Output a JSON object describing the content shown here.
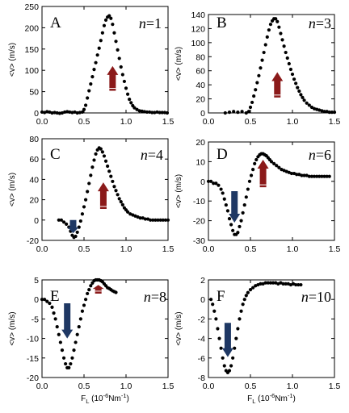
{
  "figure": {
    "ylabel": "<v> (m/s)",
    "xlabel_main": "F",
    "xlabel_sub": "L",
    "xlabel_unit_open": "(10",
    "xlabel_unit_exp": "-6",
    "xlabel_unit_close": "Nm",
    "xlabel_unit_exp2": "-1",
    "xlabel_unit_end": ")",
    "arrow_up_color": "#8b1a1a",
    "arrow_down_color": "#1f3864",
    "marker_color": "#000000"
  },
  "chart_data": [
    {
      "type": "scatter",
      "panel": "A",
      "n_label": "n",
      "n_value": "=1",
      "xlim": [
        0.0,
        1.5
      ],
      "ylim": [
        0,
        250
      ],
      "xticks": [
        "0.0",
        "0.5",
        "1.0",
        "1.5"
      ],
      "yticks": [
        "0",
        "50",
        "100",
        "150",
        "200",
        "250"
      ],
      "x": [
        0.0,
        0.03,
        0.06,
        0.09,
        0.12,
        0.15,
        0.18,
        0.21,
        0.24,
        0.27,
        0.3,
        0.33,
        0.36,
        0.39,
        0.42,
        0.45,
        0.48,
        0.5,
        0.52,
        0.54,
        0.56,
        0.58,
        0.6,
        0.62,
        0.64,
        0.66,
        0.68,
        0.7,
        0.72,
        0.74,
        0.76,
        0.78,
        0.8,
        0.82,
        0.84,
        0.86,
        0.88,
        0.9,
        0.92,
        0.94,
        0.96,
        0.98,
        1.0,
        1.02,
        1.04,
        1.06,
        1.08,
        1.1,
        1.13,
        1.16,
        1.19,
        1.22,
        1.25,
        1.28,
        1.31,
        1.34,
        1.37,
        1.4,
        1.43,
        1.46,
        1.49
      ],
      "y": [
        2,
        1,
        3,
        2,
        0,
        1,
        0,
        -1,
        0,
        2,
        3,
        2,
        1,
        2,
        0,
        1,
        2,
        8,
        18,
        35,
        52,
        68,
        85,
        102,
        118,
        136,
        152,
        170,
        188,
        205,
        218,
        225,
        228,
        222,
        208,
        188,
        168,
        148,
        128,
        108,
        90,
        74,
        58,
        44,
        32,
        24,
        17,
        12,
        8,
        5,
        4,
        3,
        2,
        2,
        1,
        1,
        2,
        1,
        1,
        1,
        0
      ],
      "arrows": [
        {
          "direction": "up",
          "x": 0.84,
          "y_from": 52,
          "y_to": 110
        }
      ]
    },
    {
      "type": "scatter",
      "panel": "B",
      "n_label": "n",
      "n_value": "=3",
      "xlim": [
        0.0,
        1.5
      ],
      "ylim": [
        0,
        140
      ],
      "xticks": [
        "0.0",
        "0.5",
        "1.0",
        "1.5"
      ],
      "yticks": [
        "0",
        "20",
        "40",
        "60",
        "80",
        "100",
        "120",
        "140"
      ],
      "x": [
        0.2,
        0.25,
        0.3,
        0.35,
        0.4,
        0.45,
        0.48,
        0.5,
        0.52,
        0.54,
        0.56,
        0.58,
        0.6,
        0.62,
        0.64,
        0.66,
        0.68,
        0.7,
        0.72,
        0.74,
        0.76,
        0.78,
        0.8,
        0.82,
        0.84,
        0.86,
        0.88,
        0.9,
        0.92,
        0.94,
        0.96,
        0.98,
        1.0,
        1.02,
        1.04,
        1.06,
        1.08,
        1.1,
        1.12,
        1.14,
        1.17,
        1.2,
        1.23,
        1.26,
        1.29,
        1.32,
        1.35,
        1.38,
        1.41,
        1.44,
        1.47,
        1.5
      ],
      "y": [
        0,
        1,
        2,
        1,
        2,
        0,
        2,
        8,
        15,
        24,
        33,
        43,
        53,
        64,
        75,
        86,
        97,
        108,
        118,
        126,
        131,
        134,
        134,
        130,
        122,
        113,
        104,
        95,
        86,
        78,
        70,
        62,
        55,
        48,
        42,
        36,
        31,
        26,
        22,
        18,
        14,
        11,
        8,
        6,
        5,
        4,
        3,
        2,
        2,
        1,
        1,
        1
      ],
      "arrows": [
        {
          "direction": "up",
          "x": 0.82,
          "y_from": 22,
          "y_to": 58
        }
      ]
    },
    {
      "type": "scatter",
      "panel": "C",
      "n_label": "n",
      "n_value": "=4",
      "xlim": [
        0.0,
        1.5
      ],
      "ylim": [
        -20,
        80
      ],
      "xticks": [
        "0.0",
        "0.5",
        "1.0",
        "1.5"
      ],
      "yticks": [
        "-20",
        "0",
        "20",
        "40",
        "60",
        "80"
      ],
      "x": [
        0.2,
        0.23,
        0.26,
        0.29,
        0.32,
        0.34,
        0.36,
        0.38,
        0.4,
        0.42,
        0.44,
        0.46,
        0.48,
        0.5,
        0.52,
        0.54,
        0.56,
        0.58,
        0.6,
        0.62,
        0.64,
        0.66,
        0.68,
        0.7,
        0.72,
        0.74,
        0.76,
        0.78,
        0.8,
        0.82,
        0.84,
        0.86,
        0.88,
        0.9,
        0.92,
        0.94,
        0.96,
        0.98,
        1.0,
        1.02,
        1.05,
        1.08,
        1.11,
        1.14,
        1.17,
        1.2,
        1.23,
        1.26,
        1.29,
        1.32,
        1.35,
        1.38,
        1.41,
        1.44,
        1.47,
        1.5
      ],
      "y": [
        0,
        0,
        -2,
        -4,
        -7,
        -11,
        -15,
        -17,
        -16,
        -12,
        -7,
        -1,
        6,
        13,
        20,
        28,
        36,
        44,
        52,
        59,
        65,
        69,
        71,
        70,
        67,
        63,
        58,
        53,
        48,
        43,
        38,
        33,
        29,
        25,
        21,
        18,
        15,
        12,
        10,
        8,
        6,
        5,
        4,
        3,
        2,
        2,
        1,
        1,
        0,
        0,
        0,
        0,
        0,
        0,
        0,
        0
      ],
      "arrows": [
        {
          "direction": "down",
          "x": 0.37,
          "y_from": 0,
          "y_to": -13
        },
        {
          "direction": "up",
          "x": 0.73,
          "y_from": 11,
          "y_to": 37
        }
      ]
    },
    {
      "type": "scatter",
      "panel": "D",
      "n_label": "n",
      "n_value": "=6",
      "xlim": [
        0.0,
        1.5
      ],
      "ylim": [
        -30,
        20
      ],
      "xticks": [
        "0.0",
        "0.5",
        "1.0",
        "1.5"
      ],
      "yticks": [
        "-30",
        "-20",
        "-10",
        "0",
        "10",
        "20"
      ],
      "x": [
        0.0,
        0.03,
        0.06,
        0.09,
        0.12,
        0.15,
        0.17,
        0.19,
        0.21,
        0.23,
        0.25,
        0.27,
        0.29,
        0.31,
        0.33,
        0.35,
        0.37,
        0.39,
        0.41,
        0.43,
        0.45,
        0.47,
        0.49,
        0.51,
        0.53,
        0.55,
        0.57,
        0.59,
        0.61,
        0.63,
        0.65,
        0.67,
        0.69,
        0.71,
        0.73,
        0.75,
        0.78,
        0.81,
        0.84,
        0.87,
        0.9,
        0.93,
        0.96,
        0.99,
        1.02,
        1.05,
        1.08,
        1.11,
        1.14,
        1.17,
        1.2,
        1.23,
        1.26,
        1.29,
        1.32,
        1.35,
        1.38,
        1.41,
        1.44
      ],
      "y": [
        0,
        0,
        -1,
        -1,
        -2,
        -4,
        -6,
        -9,
        -12,
        -15,
        -19,
        -22,
        -25,
        -27,
        -27,
        -26,
        -23,
        -20,
        -16,
        -12,
        -8,
        -4,
        0,
        3,
        6,
        9,
        11,
        12.5,
        13.5,
        14,
        14,
        13.5,
        13,
        12,
        11,
        10,
        9,
        8,
        7,
        6,
        5.5,
        5,
        4.5,
        4,
        4,
        3.5,
        3.5,
        3,
        3,
        3,
        2.5,
        2.5,
        2.5,
        2.5,
        2.5,
        2.5,
        2.5,
        2.5,
        2.5
      ],
      "arrows": [
        {
          "direction": "down",
          "x": 0.31,
          "y_from": -5,
          "y_to": -21
        },
        {
          "direction": "up",
          "x": 0.65,
          "y_from": -3,
          "y_to": 11
        }
      ]
    },
    {
      "type": "scatter",
      "panel": "E",
      "n_label": "n",
      "n_value": "=8",
      "xlim": [
        0.0,
        1.5
      ],
      "ylim": [
        -20,
        5
      ],
      "xticks": [
        "0.0",
        "0.5",
        "1.0",
        "1.5"
      ],
      "yticks": [
        "-20",
        "-15",
        "-10",
        "-5",
        "0",
        "5"
      ],
      "x": [
        0.0,
        0.03,
        0.06,
        0.09,
        0.12,
        0.14,
        0.16,
        0.18,
        0.2,
        0.22,
        0.24,
        0.26,
        0.28,
        0.3,
        0.32,
        0.34,
        0.36,
        0.38,
        0.4,
        0.42,
        0.44,
        0.46,
        0.48,
        0.5,
        0.52,
        0.54,
        0.56,
        0.58,
        0.6,
        0.62,
        0.64,
        0.66,
        0.68,
        0.7,
        0.72,
        0.74,
        0.76,
        0.78,
        0.8,
        0.82,
        0.84,
        0.86,
        0.88
      ],
      "y": [
        0,
        0,
        -0.5,
        -1,
        -2,
        -3.5,
        -5,
        -7,
        -9,
        -11,
        -13,
        -15,
        -16.5,
        -17.5,
        -17.5,
        -16.5,
        -15,
        -13,
        -11,
        -9,
        -7,
        -5,
        -3,
        -1.5,
        0,
        1.5,
        2.5,
        3.5,
        4.2,
        4.8,
        5,
        5,
        5,
        4.8,
        4.5,
        4,
        3.5,
        3,
        2.8,
        2.5,
        2.2,
        2,
        1.8
      ],
      "arrows": [
        {
          "direction": "down",
          "x": 0.3,
          "y_from": -1,
          "y_to": -10
        },
        {
          "direction": "up",
          "x": 0.67,
          "y_from": 1.5,
          "y_to": 3.7
        }
      ]
    },
    {
      "type": "scatter",
      "panel": "F",
      "n_label": "n",
      "n_value": "=10",
      "xlim": [
        0.0,
        1.5
      ],
      "ylim": [
        -8,
        2
      ],
      "xticks": [
        "0.0",
        "0.5",
        "1.0",
        "1.5"
      ],
      "yticks": [
        "-8",
        "-6",
        "-4",
        "-2",
        "0",
        "2"
      ],
      "x": [
        0.03,
        0.05,
        0.07,
        0.09,
        0.11,
        0.13,
        0.15,
        0.17,
        0.19,
        0.21,
        0.23,
        0.25,
        0.27,
        0.29,
        0.31,
        0.33,
        0.35,
        0.37,
        0.39,
        0.41,
        0.43,
        0.45,
        0.47,
        0.5,
        0.53,
        0.56,
        0.59,
        0.62,
        0.65,
        0.68,
        0.71,
        0.74,
        0.77,
        0.8,
        0.83,
        0.86,
        0.89,
        0.92,
        0.95,
        0.98,
        1.01,
        1.04,
        1.07,
        1.1
      ],
      "y": [
        0,
        -0.5,
        -1.2,
        -2,
        -3,
        -4,
        -5,
        -6,
        -6.8,
        -7.3,
        -7.5,
        -7.3,
        -6.8,
        -6,
        -5,
        -4,
        -3,
        -2,
        -1.2,
        -0.5,
        0,
        0.4,
        0.7,
        1,
        1.2,
        1.4,
        1.5,
        1.6,
        1.6,
        1.7,
        1.7,
        1.7,
        1.7,
        1.7,
        1.6,
        1.7,
        1.6,
        1.6,
        1.6,
        1.5,
        1.6,
        1.5,
        1.5,
        1.5
      ],
      "arrows": [
        {
          "direction": "down",
          "x": 0.23,
          "y_from": -2.4,
          "y_to": -5.9
        }
      ]
    }
  ]
}
